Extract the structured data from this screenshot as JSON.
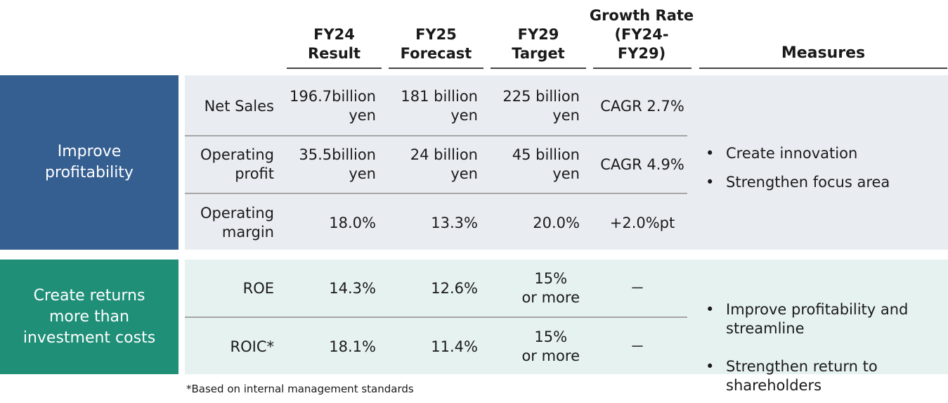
{
  "header": {
    "fy24": "FY24\nResult",
    "fy25": "FY25\nForecast",
    "fy29": "FY29\nTarget",
    "growth": "Growth Rate\n(FY24-\nFY29)",
    "measures": "Measures"
  },
  "colors": {
    "profitability_cat": "#355f91",
    "returns_cat": "#1f8f78",
    "profitability_bg": "#e9edf2",
    "returns_bg": "#e6f2ef"
  },
  "sections": [
    {
      "category": "Improve\nprofitability",
      "rows": [
        {
          "label": "Net Sales",
          "fy24": "196.7billion\nyen",
          "fy25": "181 billion\nyen",
          "fy29": "225 billion\nyen",
          "growth": "CAGR 2.7%"
        },
        {
          "label": "Operating\nprofit",
          "fy24": "35.5billion\nyen",
          "fy25": "24 billion\nyen",
          "fy29": "45 billion\nyen",
          "growth": "CAGR 4.9%"
        },
        {
          "label": "Operating\nmargin",
          "fy24": "18.0%",
          "fy25": "13.3%",
          "fy29": "20.0%",
          "growth": "+2.0%pt"
        }
      ],
      "measures": [
        "Create innovation",
        "Strengthen focus area"
      ]
    },
    {
      "category": "Create returns\nmore than\ninvestment costs",
      "rows": [
        {
          "label": "ROE",
          "fy24": "14.3%",
          "fy25": "12.6%",
          "fy29": "15%\nor more",
          "growth": "－"
        },
        {
          "label": "ROIC*",
          "fy24": "18.1%",
          "fy25": "11.4%",
          "fy29": "15%\nor more",
          "growth": "－"
        }
      ],
      "measures": [
        "Improve profitability and\nstreamline",
        "Strengthen return to\nshareholders"
      ]
    }
  ],
  "bullet_symbol": "•",
  "footnote": "*Based on internal management standards"
}
